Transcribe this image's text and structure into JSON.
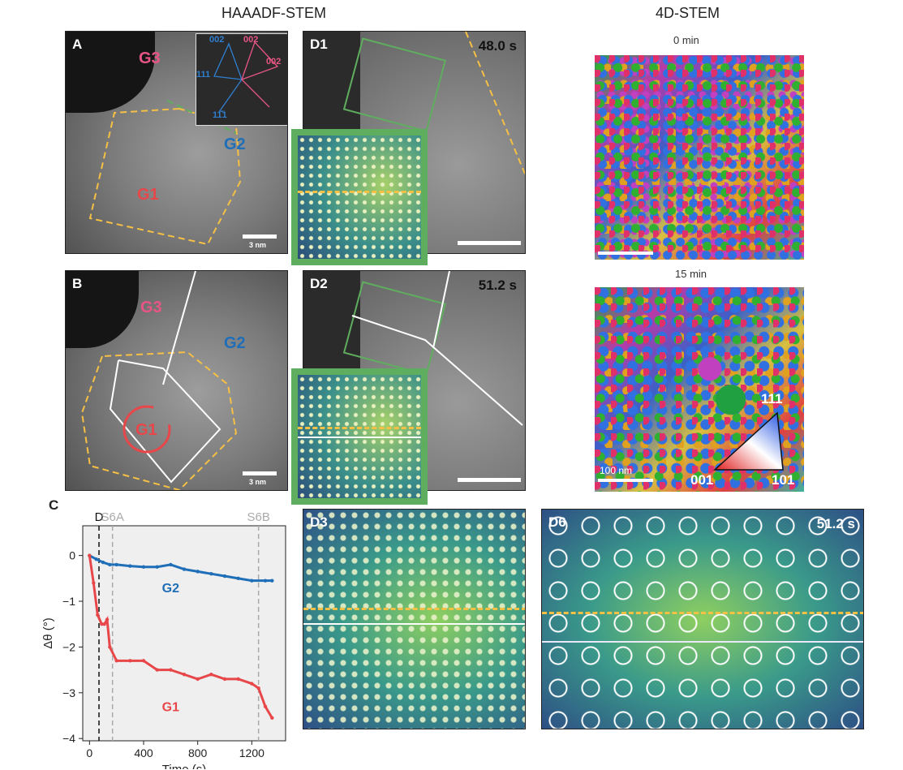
{
  "headers": {
    "left": "HAAADF-STEM",
    "right": "4D-STEM"
  },
  "panels": {
    "A": {
      "letter": "A",
      "grains": [
        "G3",
        "G2",
        "G1"
      ],
      "scale": "3 nm",
      "fft": {
        "labels": [
          "002",
          "002",
          "002",
          "111",
          "11̄̅1"
        ]
      }
    },
    "B": {
      "letter": "B",
      "grains": [
        "G3",
        "G2",
        "G1"
      ],
      "scale": "3 nm"
    },
    "D1": {
      "letter": "D1",
      "time": "48.0 s"
    },
    "D2": {
      "letter": "D2",
      "time": "51.2 s"
    },
    "D3": {
      "letter": "D3"
    },
    "D6": {
      "letter": "D6",
      "time": "51.2 s"
    },
    "map0": {
      "caption": "0  min"
    },
    "map15": {
      "caption": "15 min",
      "scale": "100 nm",
      "triangle": {
        "top": "111",
        "left": "001",
        "right": "101"
      }
    },
    "C": {
      "letter": "C"
    }
  },
  "colors": {
    "G1": "#e8474a",
    "G2": "#1f6fb8",
    "G3": "#e85585",
    "boundary": "#f5c044"
  },
  "chart_data": {
    "type": "scatter",
    "xlabel": "Time (s)",
    "ylabel": "Δθ (°)",
    "xlim": [
      -50,
      1450
    ],
    "ylim": [
      -4.05,
      0.65
    ],
    "xticks": [
      0,
      400,
      800,
      1200
    ],
    "yticks": [
      0,
      -1,
      -2,
      -3,
      -4
    ],
    "markers": [
      {
        "label": "D",
        "x": 70,
        "style": "black-dashed"
      },
      {
        "label": "S6A",
        "x": 170,
        "style": "gray-dashed"
      },
      {
        "label": "S6B",
        "x": 1250,
        "style": "gray-dashed"
      }
    ],
    "series": [
      {
        "name": "G2",
        "color": "#1f6fb8",
        "x": [
          0,
          50,
          100,
          150,
          200,
          300,
          400,
          500,
          600,
          700,
          800,
          900,
          1000,
          1100,
          1200,
          1300,
          1350
        ],
        "values": [
          0,
          -0.08,
          -0.15,
          -0.2,
          -0.2,
          -0.23,
          -0.25,
          -0.25,
          -0.2,
          -0.3,
          -0.35,
          -0.4,
          -0.45,
          -0.5,
          -0.55,
          -0.55,
          -0.55
        ]
      },
      {
        "name": "G1",
        "color": "#e8474a",
        "x": [
          0,
          30,
          60,
          90,
          110,
          130,
          150,
          200,
          300,
          400,
          500,
          600,
          700,
          800,
          900,
          1000,
          1100,
          1200,
          1250,
          1300,
          1350
        ],
        "values": [
          0,
          -0.6,
          -1.3,
          -1.5,
          -1.5,
          -1.4,
          -2.0,
          -2.3,
          -2.3,
          -2.3,
          -2.5,
          -2.5,
          -2.6,
          -2.7,
          -2.6,
          -2.7,
          -2.7,
          -2.8,
          -2.9,
          -3.3,
          -3.55
        ]
      }
    ]
  }
}
